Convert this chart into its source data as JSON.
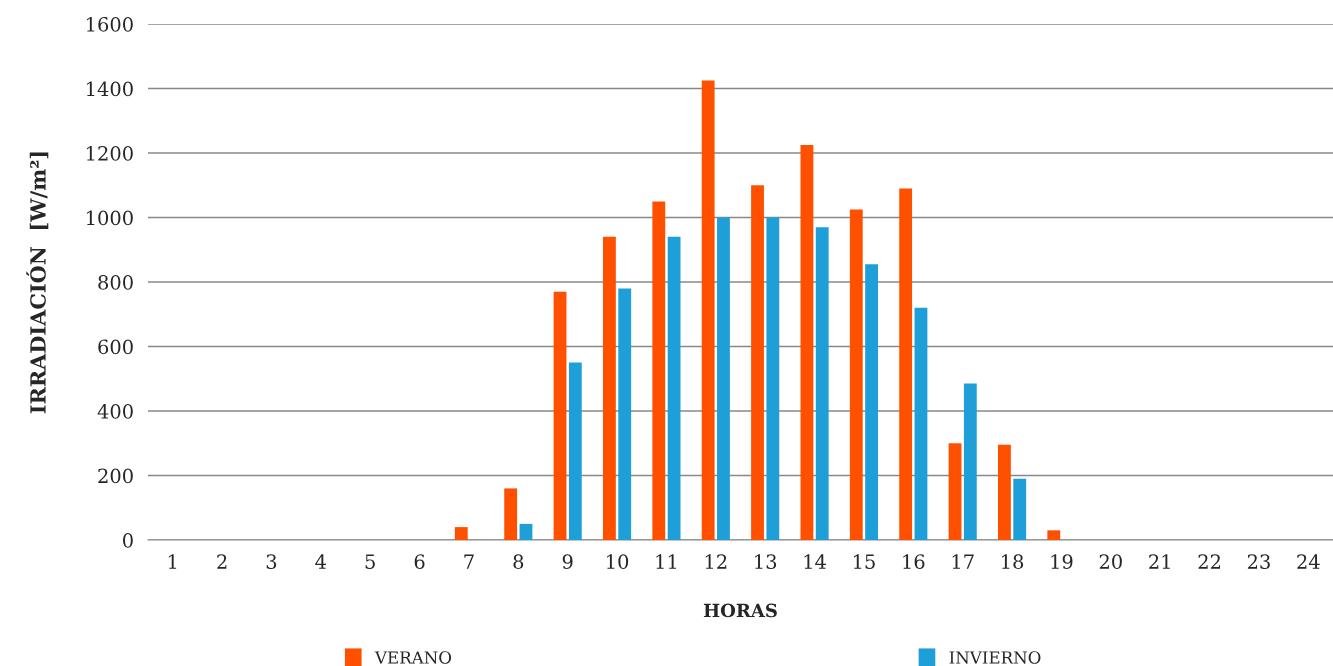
{
  "chart_data": {
    "type": "bar",
    "xlabel": "HORAS",
    "ylabel": "IRRADIACIÓN  [W/m²]",
    "categories": [
      "1",
      "2",
      "3",
      "4",
      "5",
      "6",
      "7",
      "8",
      "9",
      "10",
      "11",
      "12",
      "13",
      "14",
      "15",
      "16",
      "17",
      "18",
      "19",
      "20",
      "21",
      "22",
      "23",
      "24"
    ],
    "series": [
      {
        "name": "VERANO",
        "color": "#ff5000",
        "values": [
          0,
          0,
          0,
          0,
          0,
          0,
          40,
          160,
          770,
          940,
          1050,
          1425,
          1100,
          1225,
          1025,
          1090,
          300,
          295,
          30,
          0,
          0,
          0,
          0,
          0
        ]
      },
      {
        "name": "INVIERNO",
        "color": "#1f9fd8",
        "values": [
          0,
          0,
          0,
          0,
          0,
          0,
          0,
          50,
          550,
          780,
          940,
          1000,
          1000,
          970,
          855,
          720,
          485,
          190,
          0,
          0,
          0,
          0,
          0,
          0
        ]
      }
    ],
    "ylim": [
      0,
      1600
    ],
    "yticks": [
      0,
      200,
      400,
      600,
      800,
      1000,
      1200,
      1400,
      1600
    ],
    "grid": "y",
    "legend": "bottom"
  }
}
